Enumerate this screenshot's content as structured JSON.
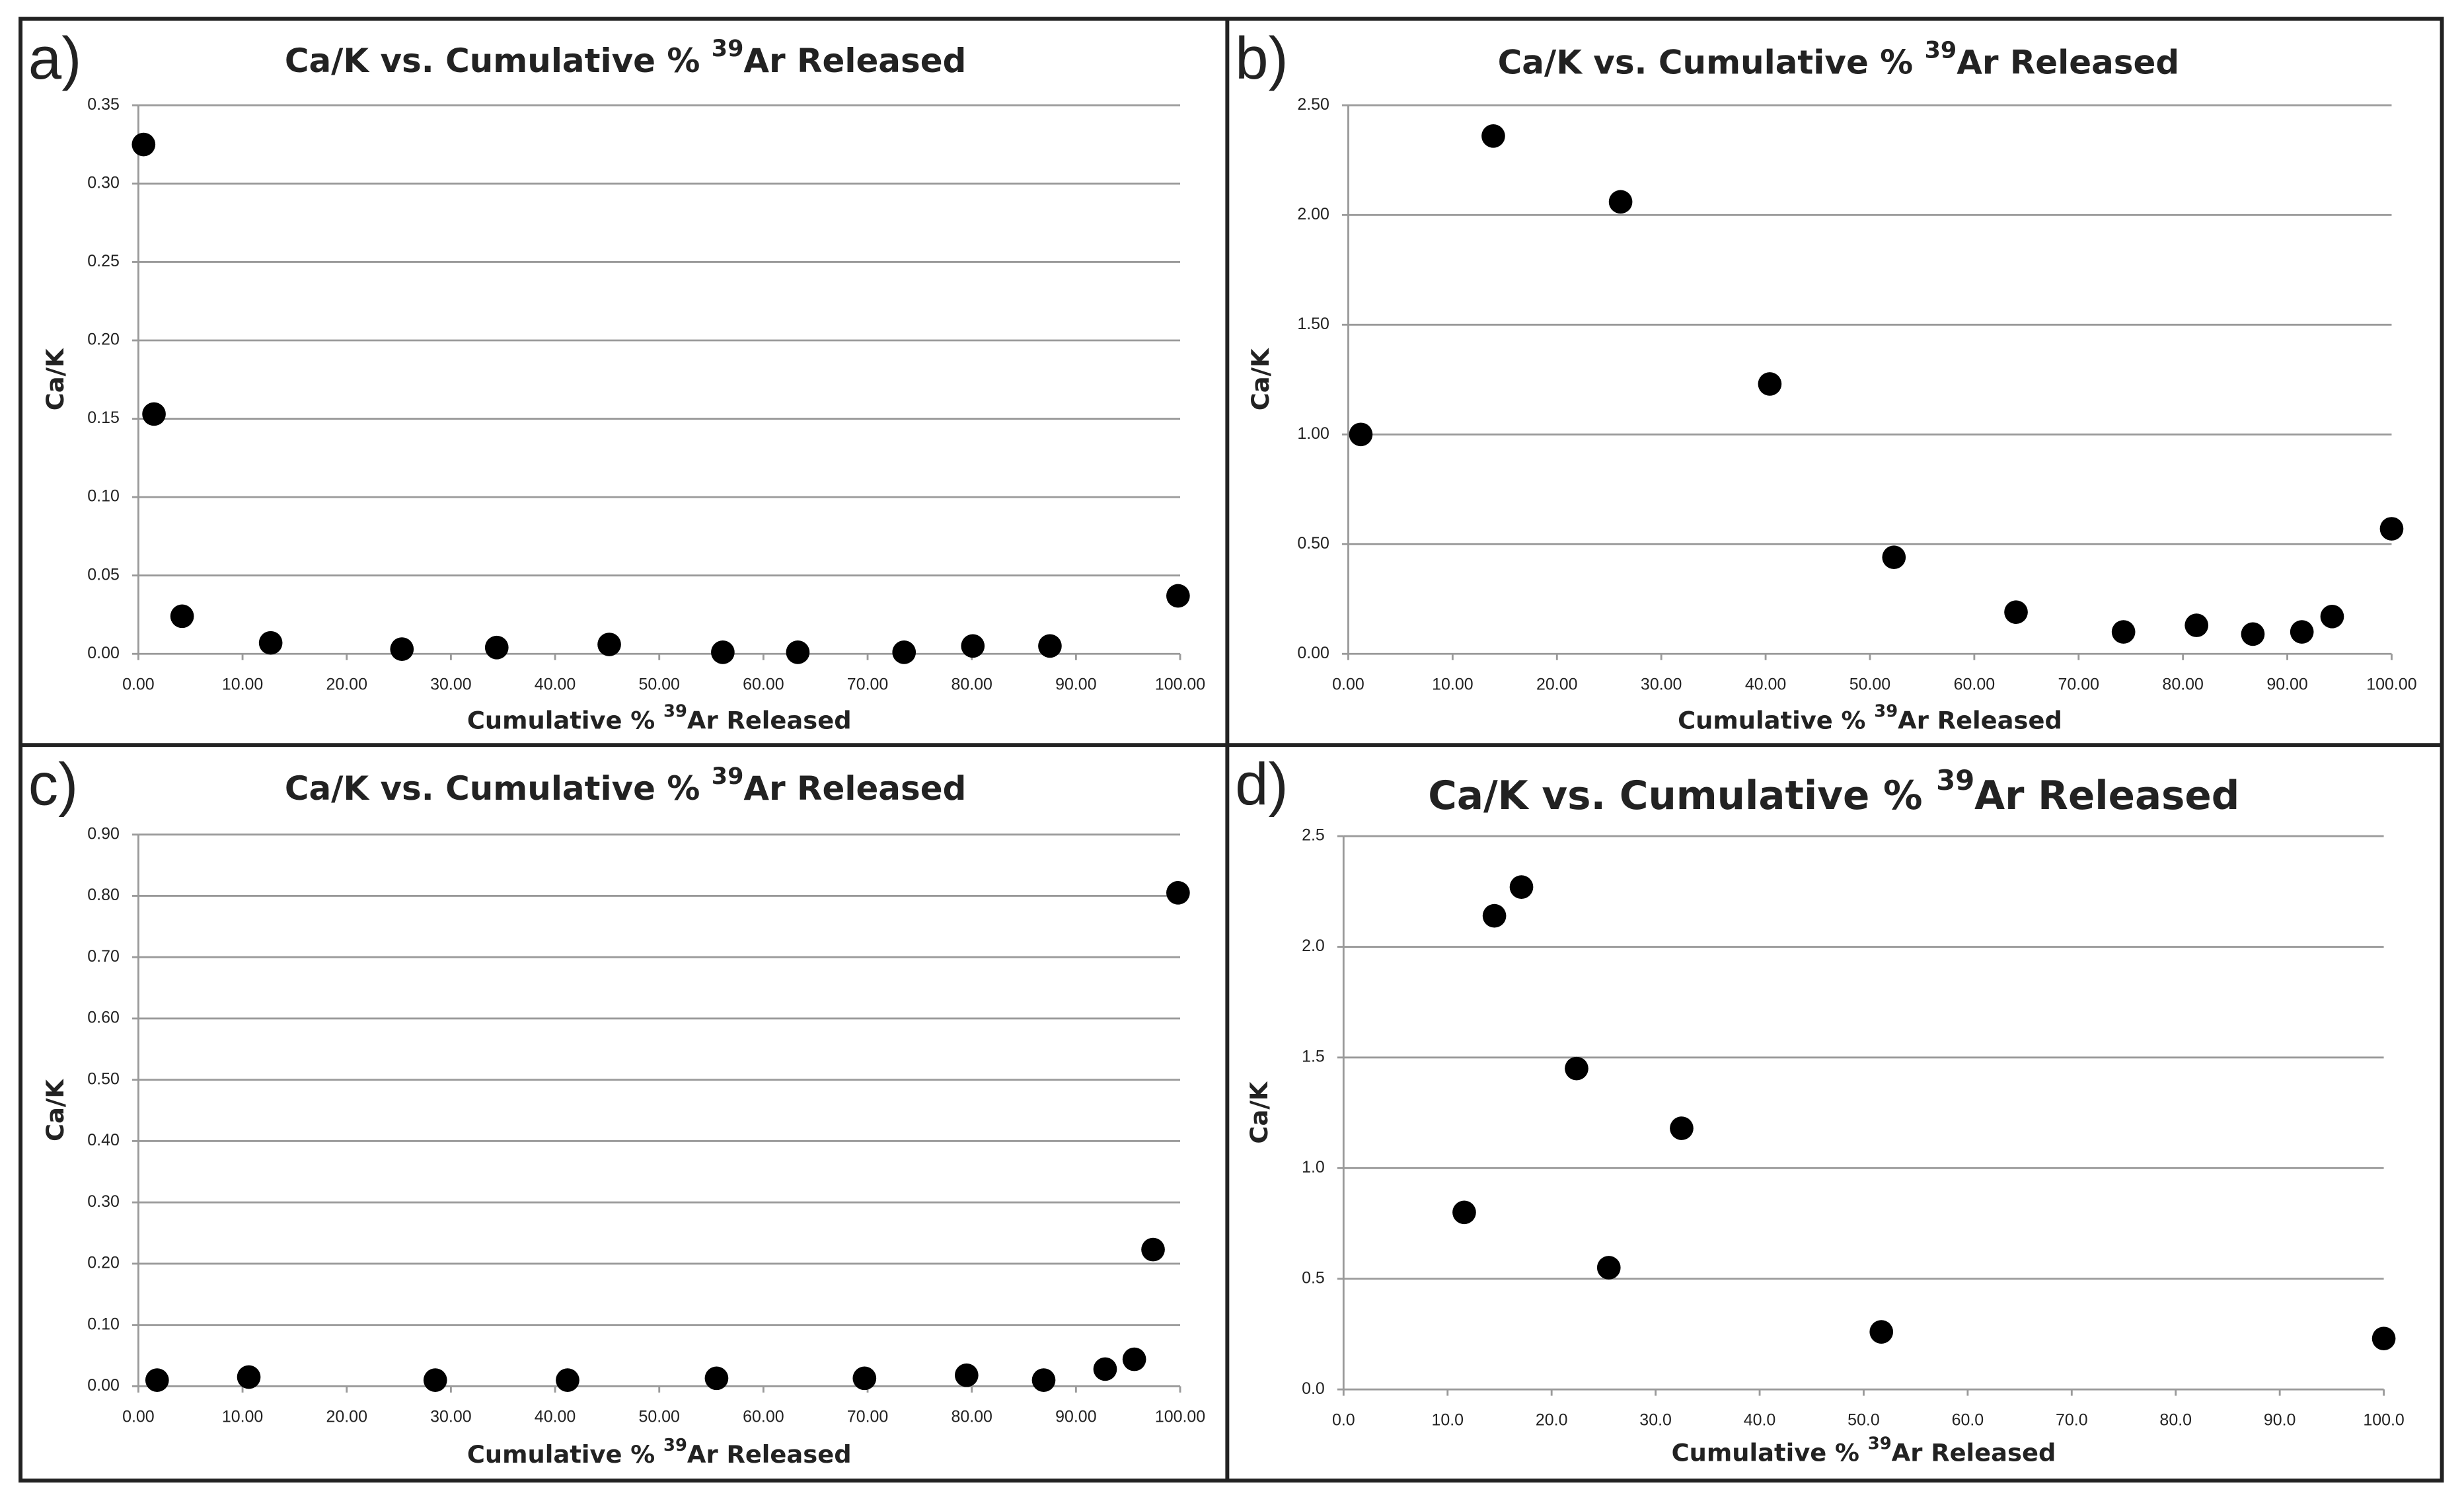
{
  "chart_data": [
    {
      "type": "scatter",
      "panel_label": "a)",
      "title": [
        "Ca/K vs. Cumulative % ",
        "39",
        "Ar Released"
      ],
      "xlabel": [
        "Cumulative % ",
        "39",
        "Ar Released"
      ],
      "ylabel": "Ca/K",
      "color": "#000000",
      "grid": true,
      "x": [
        0.5,
        1.5,
        4.2,
        12.7,
        25.3,
        34.4,
        45.2,
        56.1,
        63.3,
        73.5,
        80.1,
        87.5,
        99.8
      ],
      "values": [
        0.325,
        0.153,
        0.024,
        0.007,
        0.003,
        0.004,
        0.006,
        0.001,
        0.001,
        0.001,
        0.005,
        0.005,
        0.037
      ],
      "xlim": [
        0,
        100
      ],
      "ylim": [
        0,
        0.35
      ],
      "xticks": [
        {
          "value": 0,
          "label": "0.00"
        },
        {
          "value": 10,
          "label": "10.00"
        },
        {
          "value": 20,
          "label": "20.00"
        },
        {
          "value": 30,
          "label": "30.00"
        },
        {
          "value": 40,
          "label": "40.00"
        },
        {
          "value": 50,
          "label": "50.00"
        },
        {
          "value": 60,
          "label": "60.00"
        },
        {
          "value": 70,
          "label": "70.00"
        },
        {
          "value": 80,
          "label": "80.00"
        },
        {
          "value": 90,
          "label": "90.00"
        },
        {
          "value": 100,
          "label": "100.00"
        }
      ],
      "yticks": [
        {
          "value": 0,
          "label": "0.00"
        },
        {
          "value": 0.05,
          "label": "0.05"
        },
        {
          "value": 0.1,
          "label": "0.10"
        },
        {
          "value": 0.15,
          "label": "0.15"
        },
        {
          "value": 0.2,
          "label": "0.20"
        },
        {
          "value": 0.25,
          "label": "0.25"
        },
        {
          "value": 0.3,
          "label": "0.30"
        },
        {
          "value": 0.35,
          "label": "0.35"
        }
      ]
    },
    {
      "type": "scatter",
      "panel_label": "b)",
      "title": [
        "Ca/K vs. Cumulative % ",
        "39",
        "Ar Released"
      ],
      "xlabel": [
        "Cumulative % ",
        "39",
        "Ar Released"
      ],
      "ylabel": "Ca/K",
      "color": "#000000",
      "grid": true,
      "x": [
        1.2,
        13.9,
        26.1,
        40.4,
        52.3,
        64.0,
        74.3,
        81.3,
        86.7,
        91.4,
        94.3,
        100
      ],
      "values": [
        1.0,
        2.36,
        2.06,
        1.23,
        0.44,
        0.19,
        0.1,
        0.13,
        0.09,
        0.1,
        0.17,
        0.57
      ],
      "xlim": [
        0,
        100
      ],
      "ylim": [
        0,
        2.5
      ],
      "xticks": [
        {
          "value": 0,
          "label": "0.00"
        },
        {
          "value": 10,
          "label": "10.00"
        },
        {
          "value": 20,
          "label": "20.00"
        },
        {
          "value": 30,
          "label": "30.00"
        },
        {
          "value": 40,
          "label": "40.00"
        },
        {
          "value": 50,
          "label": "50.00"
        },
        {
          "value": 60,
          "label": "60.00"
        },
        {
          "value": 70,
          "label": "70.00"
        },
        {
          "value": 80,
          "label": "80.00"
        },
        {
          "value": 90,
          "label": "90.00"
        },
        {
          "value": 100,
          "label": "100.00"
        }
      ],
      "yticks": [
        {
          "value": 0,
          "label": "0.00"
        },
        {
          "value": 0.5,
          "label": "0.50"
        },
        {
          "value": 1,
          "label": "1.00"
        },
        {
          "value": 1.5,
          "label": "1.50"
        },
        {
          "value": 2,
          "label": "2.00"
        },
        {
          "value": 2.5,
          "label": "2.50"
        }
      ]
    },
    {
      "type": "scatter",
      "panel_label": "c)",
      "title": [
        "Ca/K vs. Cumulative % ",
        "39",
        "Ar Released"
      ],
      "xlabel": [
        "Cumulative % ",
        "39",
        "Ar Released"
      ],
      "ylabel": "Ca/K",
      "color": "#000000",
      "grid": true,
      "x": [
        1.8,
        10.6,
        28.5,
        41.2,
        55.5,
        69.7,
        79.5,
        86.9,
        92.8,
        95.6,
        97.4,
        99.8
      ],
      "values": [
        0.01,
        0.015,
        0.01,
        0.01,
        0.013,
        0.013,
        0.018,
        0.01,
        0.028,
        0.044,
        0.223,
        0.805
      ],
      "xlim": [
        0,
        100
      ],
      "ylim": [
        0,
        0.9
      ],
      "xticks": [
        {
          "value": 0,
          "label": "0.00"
        },
        {
          "value": 10,
          "label": "10.00"
        },
        {
          "value": 20,
          "label": "20.00"
        },
        {
          "value": 30,
          "label": "30.00"
        },
        {
          "value": 40,
          "label": "40.00"
        },
        {
          "value": 50,
          "label": "50.00"
        },
        {
          "value": 60,
          "label": "60.00"
        },
        {
          "value": 70,
          "label": "70.00"
        },
        {
          "value": 80,
          "label": "80.00"
        },
        {
          "value": 90,
          "label": "90.00"
        },
        {
          "value": 100,
          "label": "100.00"
        }
      ],
      "yticks": [
        {
          "value": 0,
          "label": "0.00"
        },
        {
          "value": 0.1,
          "label": "0.10"
        },
        {
          "value": 0.2,
          "label": "0.20"
        },
        {
          "value": 0.3,
          "label": "0.30"
        },
        {
          "value": 0.4,
          "label": "0.40"
        },
        {
          "value": 0.5,
          "label": "0.50"
        },
        {
          "value": 0.6,
          "label": "0.60"
        },
        {
          "value": 0.7,
          "label": "0.70"
        },
        {
          "value": 0.8,
          "label": "0.80"
        },
        {
          "value": 0.9,
          "label": "0.90"
        }
      ]
    },
    {
      "type": "scatter",
      "panel_label": "d)",
      "title": [
        "Ca/K vs. Cumulative % ",
        "39",
        "Ar Released"
      ],
      "xlabel": [
        "Cumulative % ",
        "39",
        "Ar Released"
      ],
      "ylabel": "Ca/K",
      "color": "#000000",
      "grid": true,
      "x": [
        11.6,
        14.5,
        17.1,
        22.4,
        25.5,
        32.5,
        51.7,
        100
      ],
      "values": [
        0.8,
        2.14,
        2.27,
        1.45,
        0.55,
        1.18,
        0.26,
        0.23
      ],
      "xlim": [
        0,
        100
      ],
      "ylim": [
        0,
        2.5
      ],
      "xticks": [
        {
          "value": 0,
          "label": "0.0"
        },
        {
          "value": 10,
          "label": "10.0"
        },
        {
          "value": 20,
          "label": "20.0"
        },
        {
          "value": 30,
          "label": "30.0"
        },
        {
          "value": 40,
          "label": "40.0"
        },
        {
          "value": 50,
          "label": "50.0"
        },
        {
          "value": 60,
          "label": "60.0"
        },
        {
          "value": 70,
          "label": "70.0"
        },
        {
          "value": 80,
          "label": "80.0"
        },
        {
          "value": 90,
          "label": "90.0"
        },
        {
          "value": 100,
          "label": "100.0"
        }
      ],
      "yticks": [
        {
          "value": 0,
          "label": "0.0"
        },
        {
          "value": 0.5,
          "label": "0.5"
        },
        {
          "value": 1,
          "label": "1.0"
        },
        {
          "value": 1.5,
          "label": "1.5"
        },
        {
          "value": 2,
          "label": "2.0"
        },
        {
          "value": 2.5,
          "label": "2.5"
        }
      ]
    }
  ]
}
